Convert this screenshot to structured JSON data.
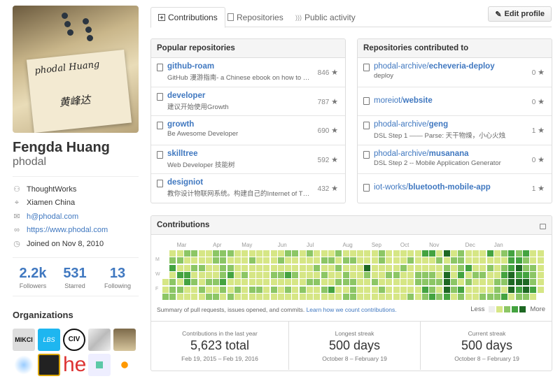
{
  "profile": {
    "name": "Fengda Huang",
    "login": "phodal",
    "avatar_signatures": [
      "phodal Huang",
      "黄峰达"
    ],
    "details": [
      {
        "icon": "organization-icon",
        "text": "ThoughtWorks",
        "link": false
      },
      {
        "icon": "location-icon",
        "text": "Xiamen China",
        "link": false
      },
      {
        "icon": "mail-icon",
        "text": "h@phodal.com",
        "link": true
      },
      {
        "icon": "link-icon",
        "text": "https://www.phodal.com",
        "link": true
      },
      {
        "icon": "clock-icon",
        "text": "Joined on Nov 8, 2010",
        "link": false
      }
    ],
    "stats": [
      {
        "value": "2.2k",
        "label": "Followers"
      },
      {
        "value": "531",
        "label": "Starred"
      },
      {
        "value": "13",
        "label": "Following"
      }
    ],
    "organizations_title": "Organizations",
    "organizations": [
      "MIKCI",
      "LBS",
      "CIV",
      "map",
      "photo",
      "network",
      "board",
      "heart",
      "pixel",
      "graph"
    ]
  },
  "tabs": [
    {
      "label": "Contributions",
      "icon": "plus-square-icon",
      "selected": true
    },
    {
      "label": "Repositories",
      "icon": "repo-icon",
      "selected": false
    },
    {
      "label": "Public activity",
      "icon": "rss-icon",
      "selected": false
    }
  ],
  "edit_profile": "Edit profile",
  "popular": {
    "title": "Popular repositories",
    "repos": [
      {
        "name": "github-roam",
        "desc": "GitHub 漫游指南- a Chinese ebook on how to build a good project on Github",
        "stars": "846"
      },
      {
        "name": "developer",
        "desc": "建议开始使用Growth",
        "stars": "787"
      },
      {
        "name": "growth",
        "desc": "Be Awesome Developer",
        "stars": "690"
      },
      {
        "name": "skilltree",
        "desc": "Web Developer 技能树",
        "stars": "592"
      },
      {
        "name": "designiot",
        "desc": "教你设计物联网系统。构建自己的Internet of Things",
        "stars": "432"
      }
    ]
  },
  "contributed": {
    "title": "Repositories contributed to",
    "repos": [
      {
        "owner": "phodal-archive/",
        "name": "echeveria-deploy",
        "desc": "deploy",
        "stars": "0"
      },
      {
        "owner": "moreiot/",
        "name": "website",
        "desc": "",
        "stars": "0"
      },
      {
        "owner": "phodal-archive/",
        "name": "geng",
        "desc": "DSL Step 1 —— Parse: 天干物燥，小心火烛",
        "stars": "1"
      },
      {
        "owner": "phodal-archive/",
        "name": "musanana",
        "desc": "DSL Step 2 -- Mobile Application Generator",
        "stars": "0"
      },
      {
        "owner": "iot-works/",
        "name": "bluetooth-mobile-app",
        "desc": "",
        "stars": "1"
      }
    ]
  },
  "contributions": {
    "title": "Contributions",
    "months": [
      "Mar",
      "Apr",
      "May",
      "Jun",
      "Jul",
      "Aug",
      "Sep",
      "Oct",
      "Nov",
      "Dec",
      "Jan"
    ],
    "days": [
      "M",
      "W",
      "F"
    ],
    "summary": "Summary of pull requests, issues opened, and commits.",
    "learn_link": "Learn how we count contributions.",
    "legend_less": "Less",
    "legend_more": "More",
    "colors": [
      "#eeeeee",
      "#d6e685",
      "#8cc665",
      "#44a340",
      "#1e6823"
    ],
    "weeks": [
      "----112",
      "1231222",
      "1213121",
      "2113311",
      "2121211",
      "1121121",
      "1111212",
      "2211212",
      "2222321",
      "2123112",
      "1111121",
      "1112111",
      "1211121",
      "1111121",
      "1111111",
      "1112121",
      "1212111",
      "2113121",
      "2112111",
      "1111121",
      "2111211",
      "1121211",
      "1212121",
      "1211131",
      "2121211",
      "1212212",
      "1211222",
      "1111111",
      "1142111",
      "1111211",
      "2211121",
      "1112111",
      "1112111",
      "1121111",
      "1211112",
      "1112211",
      "3112232",
      "3112223",
      "1211212",
      "4124443",
      "1211221",
      "2223132",
      "1131211",
      "1112111",
      "1112112",
      "3121112",
      "1111222",
      "2123213",
      "3334441",
      "2343432",
      "3223442",
      "1122231",
      "111111-"
    ],
    "stats": [
      {
        "label": "Contributions in the last year",
        "value": "5,623 total",
        "dates": "Feb 19, 2015 – Feb 19, 2016"
      },
      {
        "label": "Longest streak",
        "value": "500 days",
        "dates": "October 8 – February 19"
      },
      {
        "label": "Current streak",
        "value": "500 days",
        "dates": "October 8 – February 19"
      }
    ]
  }
}
